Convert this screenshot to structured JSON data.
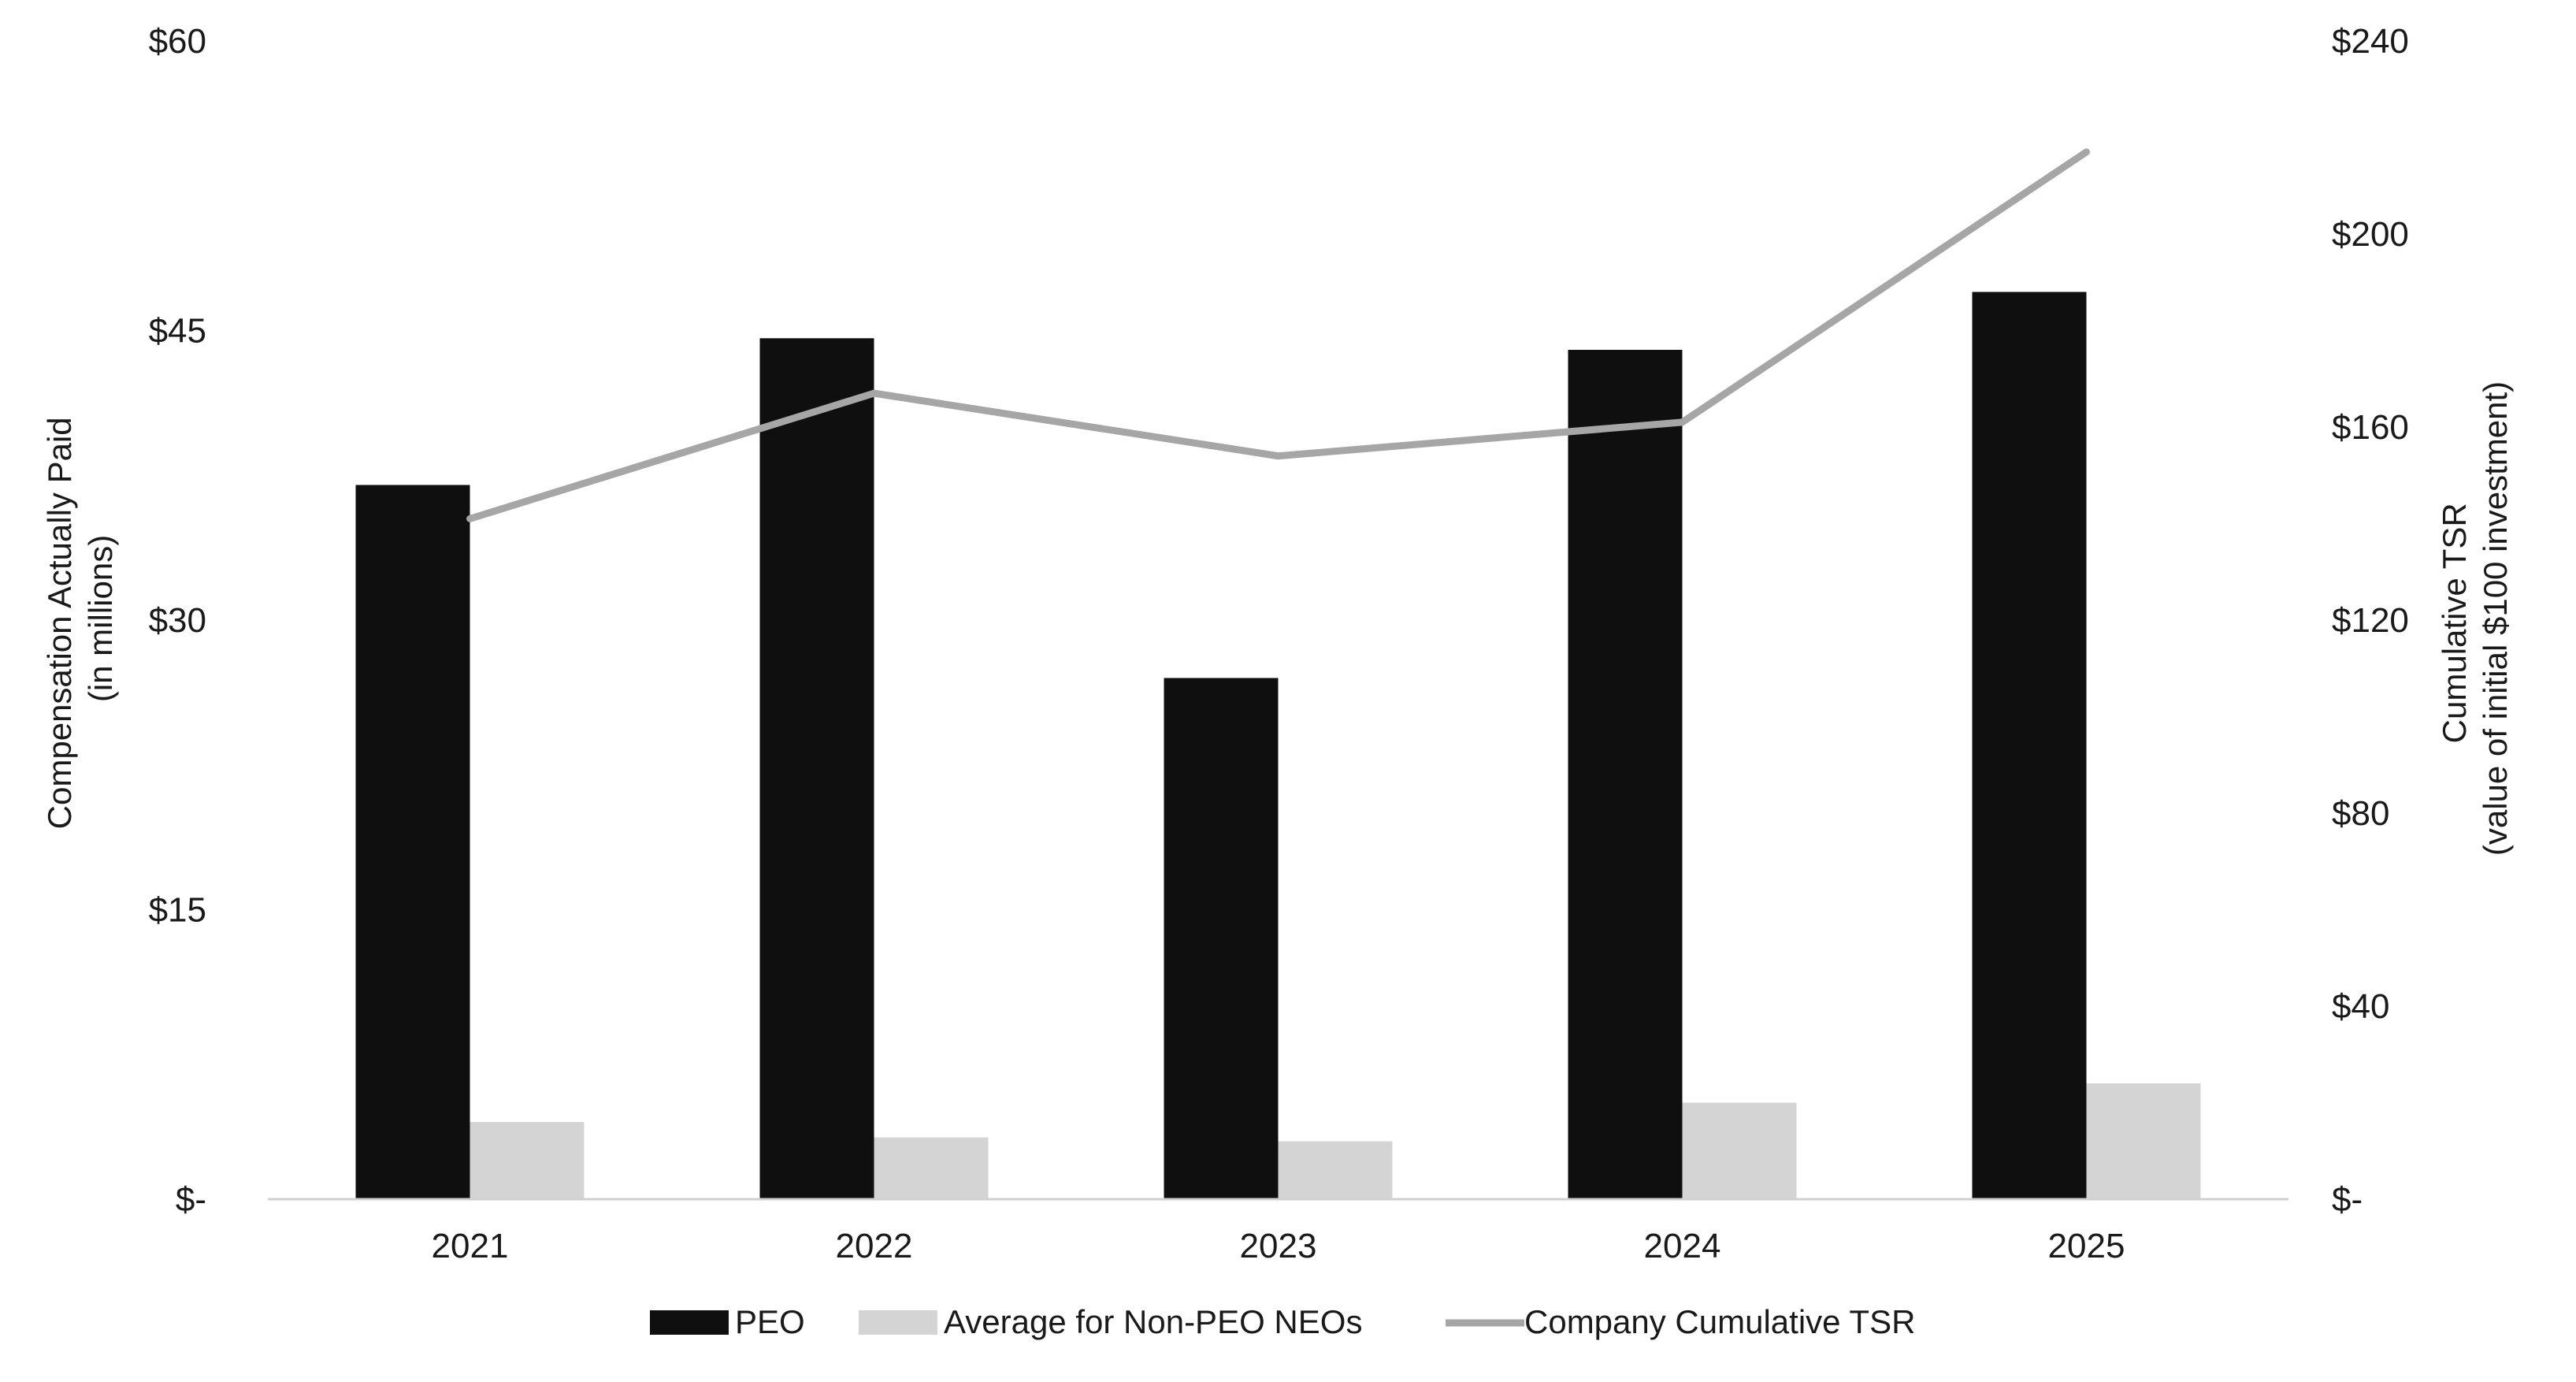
{
  "chart_data": {
    "type": "bar",
    "categories": [
      "2021",
      "2022",
      "2023",
      "2024",
      "2025"
    ],
    "series": [
      {
        "name": "PEO",
        "kind": "bar",
        "axis": "left",
        "color": "#0f0f0f",
        "values": [
          37.0,
          44.6,
          27.0,
          44.0,
          47.0
        ]
      },
      {
        "name": "Average for Non-PEO NEOs",
        "kind": "bar",
        "axis": "left",
        "color": "#d4d4d4",
        "values": [
          4.0,
          3.2,
          3.0,
          5.0,
          6.0
        ]
      },
      {
        "name": "Company Cumulative TSR",
        "kind": "line",
        "axis": "right",
        "color": "#a6a6a6",
        "values": [
          141,
          167,
          154,
          161,
          217
        ]
      }
    ],
    "left_axis": {
      "label_line1": "Compensation Actually Paid",
      "label_line2": "(in millions)",
      "ylim": [
        0,
        60
      ],
      "ticks": [
        0,
        15,
        30,
        45,
        60
      ],
      "tick_labels": [
        "$-",
        "$15",
        "$30",
        "$45",
        "$60"
      ]
    },
    "right_axis": {
      "label_line1": "Cumulative TSR",
      "label_line2": "(value of initial $100 investment)",
      "ylim": [
        0,
        240
      ],
      "ticks": [
        0,
        40,
        80,
        120,
        160,
        200,
        240
      ],
      "tick_labels": [
        "$-",
        "$40",
        "$80",
        "$120",
        "$160",
        "$200",
        "$240"
      ]
    },
    "grid": false,
    "legend_position": "bottom"
  }
}
